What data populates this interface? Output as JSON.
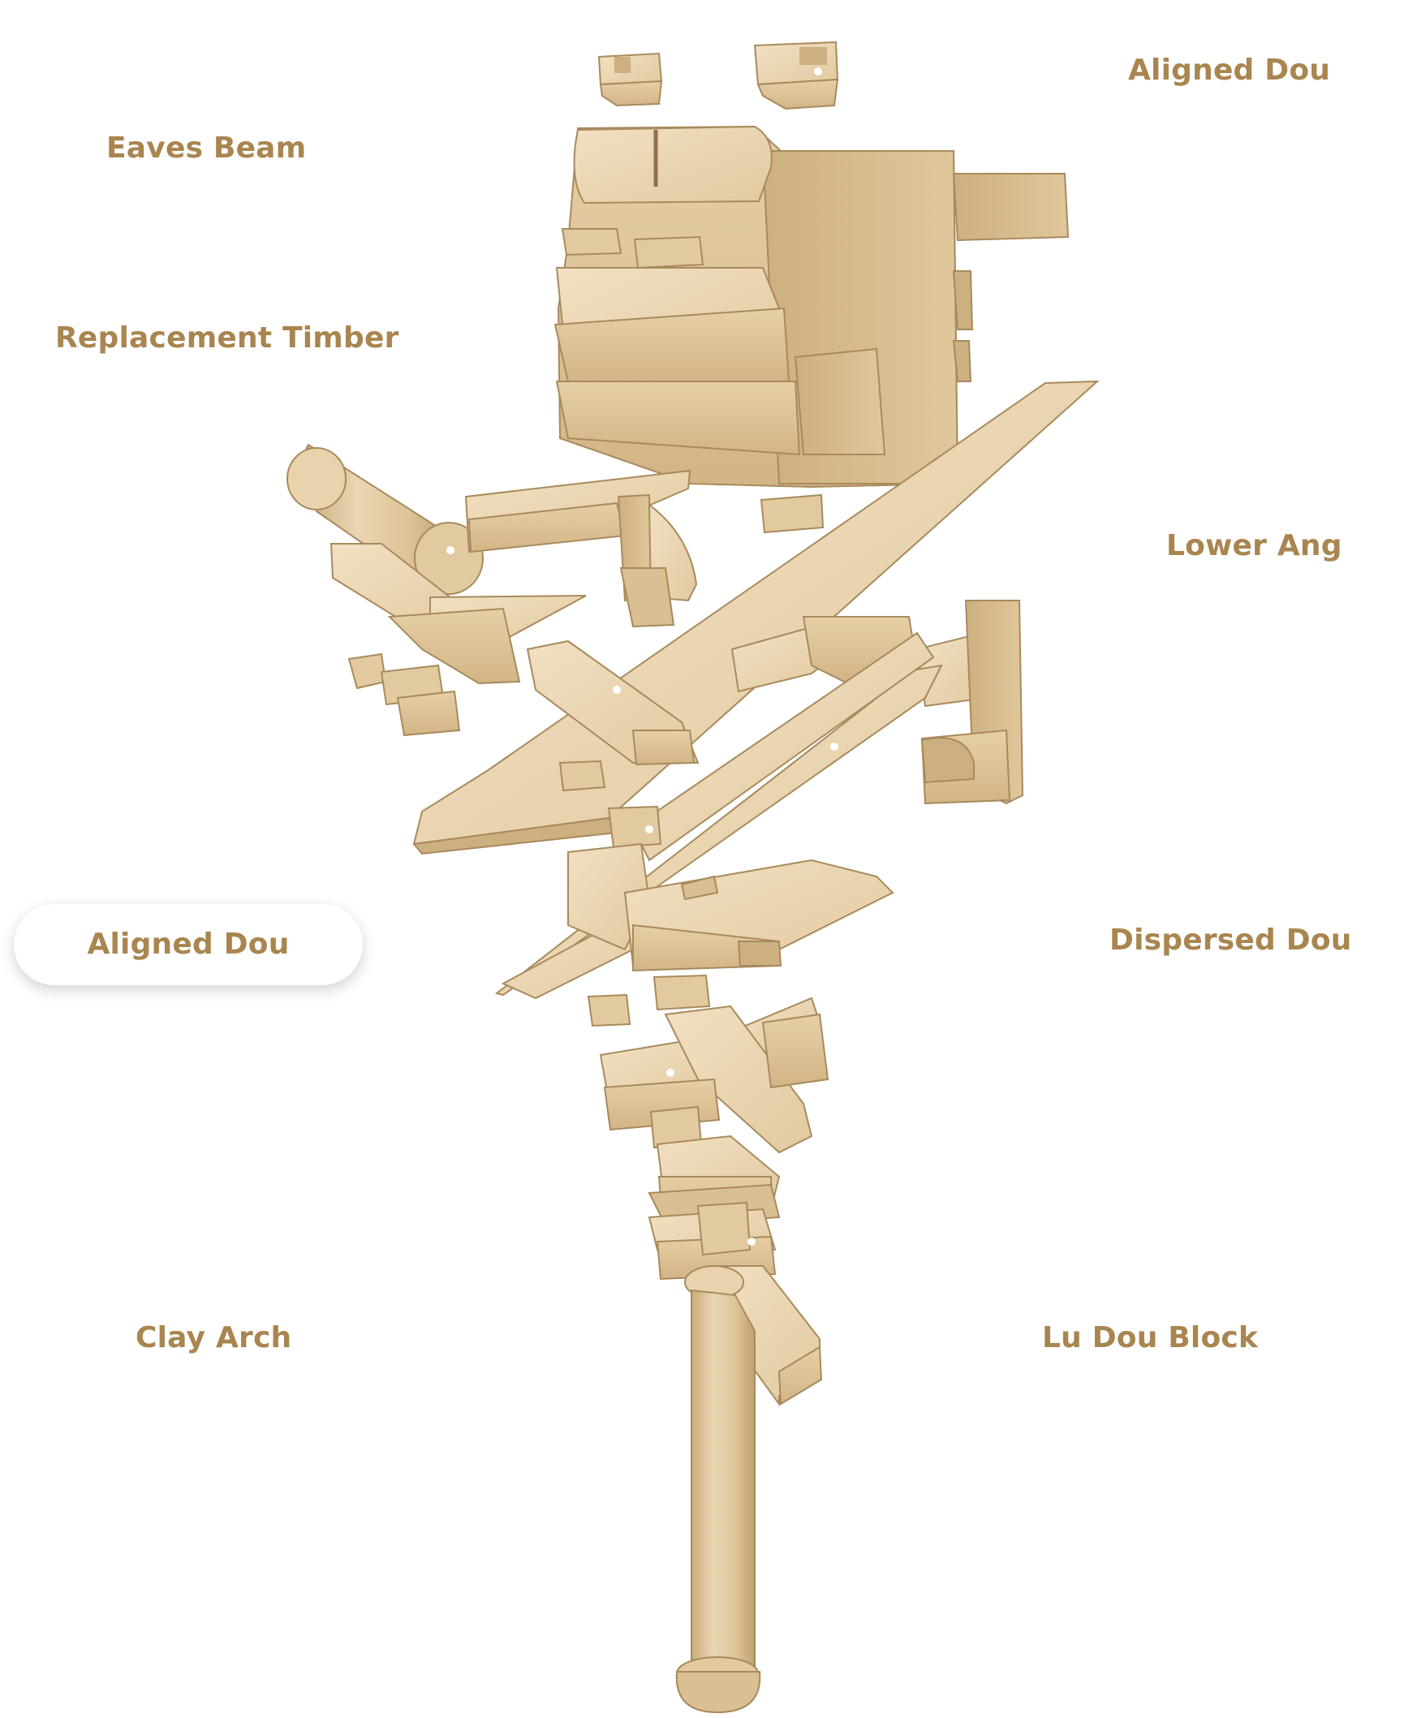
{
  "labels": {
    "aligned_dou_top": "Aligned Dou",
    "eaves_beam": "Eaves Beam",
    "replacement_timber": "Replacement Timber",
    "lower_ang": "Lower Ang",
    "aligned_dou_selected": "Aligned Dou",
    "dispersed_dou": "Dispersed Dou",
    "clay_arch": "Clay Arch",
    "lu_dou_block": "Lu Dou Block"
  },
  "colors": {
    "label_text": "#A9854F",
    "wood_light": "#E8D3AD",
    "wood_mid": "#D9BF91",
    "wood_dark": "#B99A68",
    "wood_edge": "#A88A5C"
  }
}
